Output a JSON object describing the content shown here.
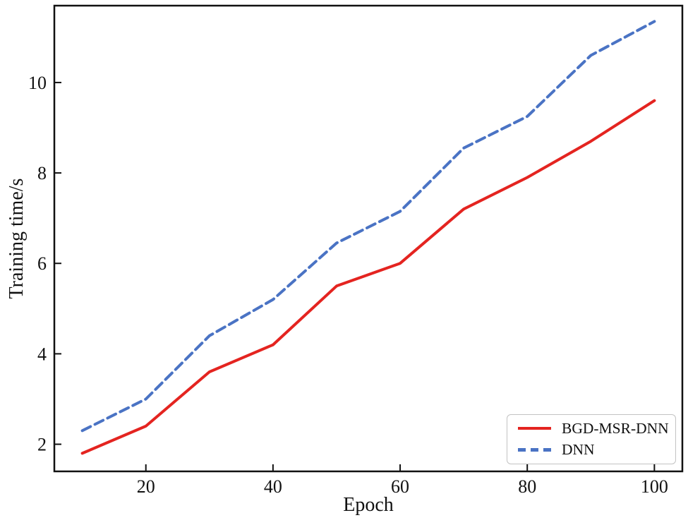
{
  "chart_data": {
    "type": "line",
    "x": [
      10,
      20,
      30,
      40,
      50,
      60,
      70,
      80,
      90,
      100
    ],
    "series": [
      {
        "name": "BGD-MSR-DNN",
        "color": "#e42420",
        "style": "solid",
        "values": [
          1.8,
          2.4,
          3.6,
          4.2,
          5.5,
          6.0,
          7.2,
          7.9,
          8.7,
          9.6
        ]
      },
      {
        "name": "DNN",
        "color": "#4a73c4",
        "style": "dashed",
        "values": [
          2.3,
          3.0,
          4.4,
          5.2,
          6.45,
          7.15,
          8.55,
          9.25,
          10.6,
          11.35
        ]
      }
    ],
    "xlabel": "Epoch",
    "ylabel": "Training time/s",
    "xticks": [
      20,
      40,
      60,
      80,
      100
    ],
    "yticks": [
      2,
      4,
      6,
      8,
      10
    ],
    "xlim": [
      5.6,
      104.4
    ],
    "ylim": [
      1.4,
      11.7
    ],
    "grid": false,
    "legend_position": "lower right",
    "frame_color": "#111111",
    "tick_direction": "in"
  }
}
